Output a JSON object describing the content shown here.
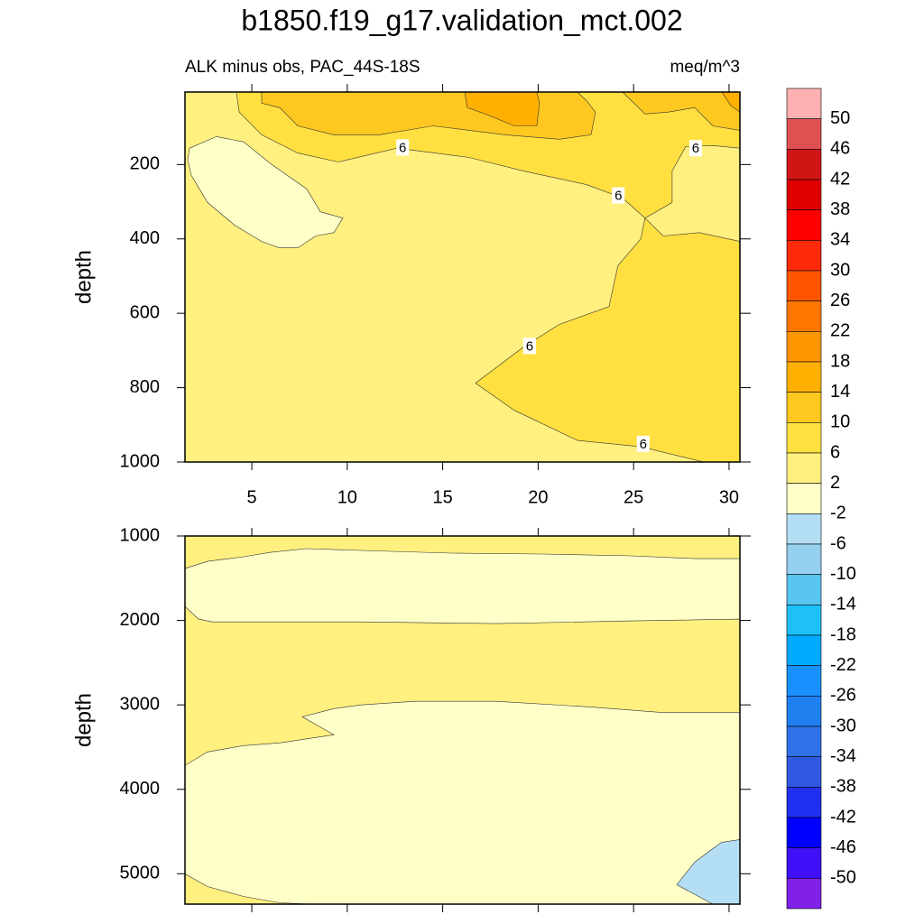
{
  "chart_data": [
    {
      "type": "contour",
      "title": "b1850.f19_g17.validation_mct.002",
      "subtitle_left": "ALK minus obs, PAC_44S-18S",
      "subtitle_right": "meq/m^3",
      "y_label": "depth",
      "xlim": [
        1.5,
        30.57
      ],
      "ylim": [
        5,
        1000
      ],
      "reverse_y": true,
      "xticks": [
        5,
        10,
        15,
        20,
        25,
        30
      ],
      "yticks": [
        200,
        400,
        600,
        800,
        1000
      ],
      "xtick_labels": true,
      "base_color": "#fff080",
      "regions": [
        {
          "color": "#ffe040",
          "x": [
            4.19,
            4.34,
            5.52,
            7.41,
            9.53,
            12.61,
            16.39,
            19.22,
            22.53,
            24.42,
            25.6,
            27.02,
            27.02,
            27.73,
            29.15,
            30.57,
            30.57
          ],
          "depth": [
            5,
            59,
            120,
            169,
            193,
            156,
            181,
            217,
            254,
            290,
            344,
            302,
            217,
            152,
            149,
            156,
            5
          ]
        },
        {
          "color": "#ffe040",
          "x": [
            25.6,
            26.55,
            28.44,
            30.57,
            30.57,
            28.67,
            25.37,
            22.06,
            18.75,
            16.72,
            19.22,
            21.11,
            23.71,
            24.18,
            25.37
          ],
          "depth": [
            344,
            392,
            383,
            407,
            1000,
            1000,
            959,
            942,
            861,
            788,
            691,
            630,
            582,
            472,
            400
          ]
        },
        {
          "color": "#ffc820",
          "x": [
            5.52,
            5.52,
            6.46,
            7.41,
            9.3,
            11.66,
            14.5,
            18.28,
            21.11,
            22.77,
            23.0,
            22.53,
            22.06
          ],
          "depth": [
            5,
            35,
            47,
            96,
            120,
            120,
            96,
            120,
            132,
            120,
            59,
            28,
            5
          ]
        },
        {
          "color": "#ffc820",
          "x": [
            24.42,
            25.6,
            26.78,
            28.2,
            29.15,
            30.57,
            30.57
          ],
          "depth": [
            5,
            64,
            59,
            47,
            96,
            108,
            5
          ]
        },
        {
          "color": "#ffb000",
          "x": [
            16.15,
            16.29,
            17.33,
            18.75,
            19.93,
            20.07,
            19.93
          ],
          "depth": [
            5,
            47,
            66,
            96,
            96,
            35,
            5
          ]
        },
        {
          "color": "#ffb000",
          "x": [
            29.62,
            30.1,
            30.57,
            30.57
          ],
          "depth": [
            5,
            42,
            59,
            5
          ]
        },
        {
          "color": "#ffffc8",
          "x": [
            1.74,
            3.15,
            4.57,
            5.99,
            7.88,
            8.59,
            9.77,
            9.3,
            8.35,
            7.41,
            6.46,
            5.52,
            4.1,
            2.68,
            1.83,
            1.64
          ],
          "depth": [
            156,
            125,
            139,
            198,
            266,
            327,
            344,
            383,
            392,
            424,
            424,
            407,
            363,
            302,
            229,
            188
          ]
        }
      ],
      "contour_labels": [
        {
          "value": 6,
          "x": 12.9,
          "depth": 154
        },
        {
          "value": 6,
          "x": 28.25,
          "depth": 156
        },
        {
          "value": 6,
          "x": 24.2,
          "depth": 283
        },
        {
          "value": 6,
          "x": 19.55,
          "depth": 688
        },
        {
          "value": 6,
          "x": 25.5,
          "depth": 951
        }
      ]
    },
    {
      "type": "contour",
      "y_label": "depth",
      "xlim": [
        1.5,
        30.57
      ],
      "ylim": [
        1000,
        5360
      ],
      "reverse_y": true,
      "xticks": [
        5,
        10,
        15,
        20,
        25,
        30
      ],
      "yticks": [
        1000,
        2000,
        3000,
        4000,
        5000
      ],
      "xtick_labels": false,
      "base_color": "#ffffc8",
      "regions": [
        {
          "color": "#fff080",
          "x": [
            1.5,
            30.57,
            30.57,
            28.2,
            24.89,
            20.17,
            15.44,
            10.72,
            7.88,
            5.99,
            4.57,
            2.68,
            1.5
          ],
          "depth": [
            1000,
            1000,
            1268,
            1268,
            1235,
            1214,
            1203,
            1171,
            1150,
            1193,
            1246,
            1300,
            1385
          ]
        },
        {
          "color": "#fff080",
          "x": [
            1.5,
            2.21,
            2.92,
            10.72,
            17.8,
            24.89,
            30.57,
            30.57,
            26.31,
            22.53,
            17.8,
            13.55,
            10.72,
            9.3,
            7.64,
            9.3,
            6.46,
            4.57,
            2.68,
            1.5
          ],
          "depth": [
            1835,
            1984,
            2017,
            2017,
            2038,
            2006,
            1984,
            3087,
            3087,
            3022,
            2958,
            2958,
            3001,
            3044,
            3140,
            3354,
            3450,
            3482,
            3557,
            3718
          ]
        },
        {
          "color": "#fff080",
          "x": [
            1.5,
            2.68,
            4.57,
            6.46,
            8.12,
            1.5
          ],
          "depth": [
            5002,
            5152,
            5269,
            5344,
            5360,
            5360
          ]
        },
        {
          "color": "#b4def4",
          "x": [
            27.26,
            28.2,
            29.15,
            29.62,
            30.57,
            30.57,
            29.15
          ],
          "depth": [
            5130,
            4863,
            4702,
            4627,
            4595,
            5360,
            5360
          ]
        }
      ],
      "contour_labels": []
    }
  ],
  "colorbar": {
    "levels": [
      50,
      46,
      42,
      38,
      34,
      30,
      26,
      22,
      18,
      14,
      10,
      6,
      2,
      -2,
      -6,
      -10,
      -14,
      -18,
      -22,
      -26,
      -30,
      -34,
      -38,
      -42,
      -46,
      -50
    ],
    "colors": [
      "#ffb0b0",
      "#e05050",
      "#d01515",
      "#e00000",
      "#ff0000",
      "#ff2a0a",
      "#ff5500",
      "#ff7700",
      "#ff9500",
      "#ffb000",
      "#ffc820",
      "#ffe040",
      "#fff080",
      "#ffffc8",
      "#b4def4",
      "#96d0f0",
      "#5ac4f0",
      "#1ec0f8",
      "#00aaff",
      "#1890ff",
      "#2080f0",
      "#3070e8",
      "#3058e0",
      "#2030f0",
      "#0000ff",
      "#4010f8",
      "#8020e8"
    ]
  }
}
